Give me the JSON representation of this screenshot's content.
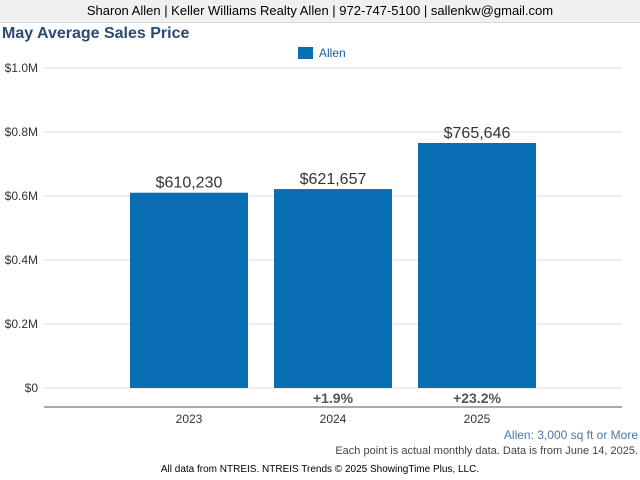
{
  "header": {
    "contact_line": "Sharon Allen | Keller Williams Realty Allen | 972-747-5100 | sallenkw@gmail.com"
  },
  "colors": {
    "bar": "#0a6eb4",
    "title": "#2a4a72",
    "grid": "#dddddd",
    "axis": "#555555"
  },
  "chart_data": {
    "type": "bar",
    "title": "May Average Sales Price",
    "xlabel": "",
    "ylabel": "",
    "categories": [
      "2023",
      "2024",
      "2025"
    ],
    "series": [
      {
        "name": "Allen",
        "values": [
          610230,
          621657,
          765646
        ]
      }
    ],
    "data_labels": [
      "$610,230",
      "$621,657",
      "$765,646"
    ],
    "change_labels": [
      "",
      "+1.9%",
      "+23.2%"
    ],
    "ylim": [
      0,
      1000000
    ],
    "yticks": [
      0,
      200000,
      400000,
      600000,
      800000,
      1000000
    ],
    "ytick_labels": [
      "$0",
      "$0.2M",
      "$0.4M",
      "$0.6M",
      "$0.8M",
      "$1.0M"
    ],
    "grid": true,
    "legend_position": "top-center"
  },
  "footnotes": {
    "area": "Allen: 3,000 sq ft or More",
    "data_note": "Each point is actual monthly data. Data is from June 14, 2025.",
    "source": "All data from NTREIS. NTREIS Trends © 2025 ShowingTime Plus, LLC."
  }
}
